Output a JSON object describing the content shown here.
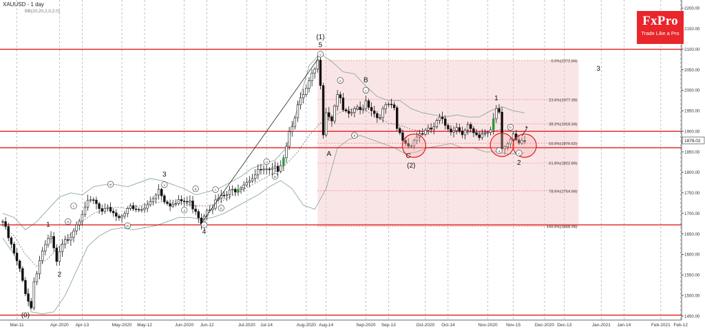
{
  "header": {
    "symbol": "XAUUSD - 1 day",
    "indicator": "BB(20,20,2,0,2.0)"
  },
  "logo": {
    "name": "FxPro",
    "tagline": "Trade Like a Pro"
  },
  "colors": {
    "level": "#e01b1b",
    "zone": "#f3c6c8",
    "bull": "#2a9a3a",
    "bear": "#111111",
    "band": "#8aa89a",
    "text": "#222222"
  },
  "chart_data": {
    "type": "candlestick",
    "symbol": "XAUUSD",
    "timeframe": "1 day",
    "ylim": [
      1440,
      2220
    ],
    "y_ticks": [
      1450,
      1500,
      1550,
      1600,
      1650,
      1700,
      1750,
      1800,
      1850,
      1900,
      1950,
      2000,
      2050,
      2100,
      2150,
      2200
    ],
    "x_ticks": [
      {
        "label": "Mar-11",
        "i": 5
      },
      {
        "label": "Apr-2020",
        "i": 20
      },
      {
        "label": "Apr-13",
        "i": 28
      },
      {
        "label": "May-2020",
        "i": 42
      },
      {
        "label": "May-12",
        "i": 50
      },
      {
        "label": "Jun-2020",
        "i": 64
      },
      {
        "label": "Jun-12",
        "i": 72
      },
      {
        "label": "Jul-2020",
        "i": 86
      },
      {
        "label": "Jul-14",
        "i": 93
      },
      {
        "label": "Aug-2020",
        "i": 107
      },
      {
        "label": "Aug-14",
        "i": 114
      },
      {
        "label": "Sep-2020",
        "i": 128
      },
      {
        "label": "Sep-13",
        "i": 136
      },
      {
        "label": "Oct-2020",
        "i": 149
      },
      {
        "label": "Oct-14",
        "i": 157
      },
      {
        "label": "Nov-2020",
        "i": 171
      },
      {
        "label": "Nov-15",
        "i": 180
      },
      {
        "label": "Dec-2020",
        "i": 191
      },
      {
        "label": "Dec-13",
        "i": 198
      },
      {
        "label": "Jan-2021",
        "i": 211
      },
      {
        "label": "Jan-14",
        "i": 219
      },
      {
        "label": "Feb-2021",
        "i": 232
      },
      {
        "label": "Feb-12",
        "i": 239
      }
    ],
    "close_path": [
      [
        0,
        1680
      ],
      [
        3,
        1620
      ],
      [
        6,
        1560
      ],
      [
        8,
        1510
      ],
      [
        10,
        1470
      ],
      [
        11,
        1535
      ],
      [
        14,
        1610
      ],
      [
        17,
        1640
      ],
      [
        19,
        1580
      ],
      [
        21,
        1620
      ],
      [
        24,
        1650
      ],
      [
        27,
        1690
      ],
      [
        29,
        1720
      ],
      [
        32,
        1730
      ],
      [
        35,
        1700
      ],
      [
        38,
        1710
      ],
      [
        41,
        1690
      ],
      [
        44,
        1715
      ],
      [
        47,
        1705
      ],
      [
        50,
        1710
      ],
      [
        53,
        1740
      ],
      [
        55,
        1760
      ],
      [
        57,
        1735
      ],
      [
        60,
        1720
      ],
      [
        63,
        1730
      ],
      [
        66,
        1725
      ],
      [
        68,
        1710
      ],
      [
        70,
        1680
      ],
      [
        72,
        1715
      ],
      [
        74,
        1720
      ],
      [
        76,
        1735
      ],
      [
        79,
        1745
      ],
      [
        82,
        1760
      ],
      [
        85,
        1775
      ],
      [
        88,
        1790
      ],
      [
        91,
        1805
      ],
      [
        94,
        1800
      ],
      [
        97,
        1810
      ],
      [
        99,
        1840
      ],
      [
        101,
        1900
      ],
      [
        104,
        1960
      ],
      [
        107,
        2000
      ],
      [
        110,
        2050
      ],
      [
        111,
        2068
      ],
      [
        112,
        2020
      ],
      [
        113,
        1900
      ],
      [
        114,
        1950
      ],
      [
        116,
        1930
      ],
      [
        118,
        1995
      ],
      [
        120,
        1950
      ],
      [
        122,
        1935
      ],
      [
        124,
        1955
      ],
      [
        126,
        1950
      ],
      [
        128,
        1975
      ],
      [
        130,
        1955
      ],
      [
        132,
        1935
      ],
      [
        134,
        1950
      ],
      [
        136,
        1965
      ],
      [
        138,
        1950
      ],
      [
        139,
        1905
      ],
      [
        141,
        1880
      ],
      [
        143,
        1865
      ],
      [
        145,
        1880
      ],
      [
        147,
        1895
      ],
      [
        150,
        1900
      ],
      [
        152,
        1910
      ],
      [
        154,
        1930
      ],
      [
        156,
        1915
      ],
      [
        158,
        1905
      ],
      [
        160,
        1910
      ],
      [
        162,
        1900
      ],
      [
        164,
        1915
      ],
      [
        166,
        1890
      ],
      [
        168,
        1880
      ],
      [
        170,
        1895
      ],
      [
        172,
        1905
      ],
      [
        174,
        1960
      ],
      [
        175,
        1950
      ],
      [
        176,
        1865
      ],
      [
        178,
        1870
      ],
      [
        180,
        1885
      ],
      [
        182,
        1865
      ],
      [
        184,
        1875
      ]
    ],
    "bull_candles": [
      83,
      99,
      173
    ],
    "upper_band_path": [
      [
        0,
        1700
      ],
      [
        4,
        1690
      ],
      [
        8,
        1660
      ],
      [
        12,
        1680
      ],
      [
        16,
        1710
      ],
      [
        20,
        1740
      ],
      [
        24,
        1750
      ],
      [
        28,
        1745
      ],
      [
        32,
        1765
      ],
      [
        36,
        1770
      ],
      [
        40,
        1770
      ],
      [
        44,
        1765
      ],
      [
        48,
        1775
      ],
      [
        52,
        1785
      ],
      [
        56,
        1780
      ],
      [
        60,
        1770
      ],
      [
        64,
        1760
      ],
      [
        68,
        1745
      ],
      [
        72,
        1752
      ],
      [
        76,
        1760
      ],
      [
        80,
        1775
      ],
      [
        84,
        1790
      ],
      [
        88,
        1810
      ],
      [
        92,
        1820
      ],
      [
        96,
        1830
      ],
      [
        100,
        1860
      ],
      [
        104,
        1960
      ],
      [
        108,
        2060
      ],
      [
        112,
        2090
      ],
      [
        116,
        2070
      ],
      [
        120,
        2045
      ],
      [
        124,
        2040
      ],
      [
        128,
        2010
      ],
      [
        132,
        1985
      ],
      [
        136,
        1975
      ],
      [
        140,
        1975
      ],
      [
        144,
        1955
      ],
      [
        148,
        1945
      ],
      [
        152,
        1940
      ],
      [
        156,
        1935
      ],
      [
        160,
        1940
      ],
      [
        164,
        1935
      ],
      [
        168,
        1935
      ],
      [
        172,
        1950
      ],
      [
        176,
        1960
      ],
      [
        180,
        1950
      ],
      [
        184,
        1945
      ]
    ],
    "lower_band_path": [
      [
        0,
        1640
      ],
      [
        4,
        1600
      ],
      [
        8,
        1530
      ],
      [
        10,
        1460
      ],
      [
        14,
        1455
      ],
      [
        18,
        1460
      ],
      [
        22,
        1500
      ],
      [
        26,
        1560
      ],
      [
        30,
        1620
      ],
      [
        34,
        1645
      ],
      [
        38,
        1660
      ],
      [
        42,
        1665
      ],
      [
        46,
        1660
      ],
      [
        50,
        1665
      ],
      [
        54,
        1670
      ],
      [
        58,
        1680
      ],
      [
        62,
        1690
      ],
      [
        66,
        1690
      ],
      [
        70,
        1685
      ],
      [
        74,
        1690
      ],
      [
        78,
        1700
      ],
      [
        82,
        1715
      ],
      [
        86,
        1730
      ],
      [
        90,
        1745
      ],
      [
        94,
        1765
      ],
      [
        98,
        1780
      ],
      [
        102,
        1760
      ],
      [
        106,
        1720
      ],
      [
        110,
        1710
      ],
      [
        114,
        1760
      ],
      [
        118,
        1860
      ],
      [
        122,
        1880
      ],
      [
        126,
        1890
      ],
      [
        130,
        1880
      ],
      [
        134,
        1870
      ],
      [
        138,
        1860
      ],
      [
        142,
        1845
      ],
      [
        146,
        1850
      ],
      [
        150,
        1860
      ],
      [
        154,
        1865
      ],
      [
        158,
        1870
      ],
      [
        162,
        1860
      ],
      [
        166,
        1860
      ],
      [
        170,
        1850
      ],
      [
        174,
        1850
      ],
      [
        178,
        1845
      ],
      [
        182,
        1845
      ],
      [
        184,
        1848
      ]
    ],
    "middle_band_path": [
      [
        0,
        1670
      ],
      [
        4,
        1645
      ],
      [
        8,
        1600
      ],
      [
        12,
        1570
      ],
      [
        16,
        1590
      ],
      [
        20,
        1620
      ],
      [
        24,
        1650
      ],
      [
        28,
        1680
      ],
      [
        32,
        1700
      ],
      [
        36,
        1710
      ],
      [
        40,
        1715
      ],
      [
        44,
        1712
      ],
      [
        48,
        1718
      ],
      [
        52,
        1725
      ],
      [
        56,
        1728
      ],
      [
        60,
        1725
      ],
      [
        64,
        1725
      ],
      [
        68,
        1718
      ],
      [
        72,
        1718
      ],
      [
        76,
        1725
      ],
      [
        80,
        1740
      ],
      [
        84,
        1755
      ],
      [
        88,
        1770
      ],
      [
        92,
        1785
      ],
      [
        96,
        1800
      ],
      [
        100,
        1820
      ],
      [
        104,
        1850
      ],
      [
        108,
        1890
      ],
      [
        112,
        1920
      ],
      [
        116,
        1935
      ],
      [
        120,
        1950
      ],
      [
        124,
        1955
      ],
      [
        128,
        1950
      ],
      [
        132,
        1935
      ],
      [
        136,
        1920
      ],
      [
        140,
        1915
      ],
      [
        144,
        1905
      ],
      [
        148,
        1900
      ],
      [
        152,
        1900
      ],
      [
        156,
        1900
      ],
      [
        160,
        1900
      ],
      [
        164,
        1898
      ],
      [
        168,
        1895
      ],
      [
        172,
        1900
      ],
      [
        176,
        1905
      ],
      [
        180,
        1900
      ],
      [
        184,
        1898
      ]
    ],
    "horizontal_levels": [
      2100,
      1900,
      1860,
      1672,
      1452
    ],
    "fib_zone": {
      "i_start": 111,
      "i_end": 203,
      "price_top": 2072.84,
      "price_bottom": 1668.39
    },
    "fib_levels": [
      {
        "price": 2072.84,
        "label": "0.0%(2072.84)"
      },
      {
        "price": 1977.39,
        "label": "23.6%(1977.39)"
      },
      {
        "price": 1918.34,
        "label": "38.2%(1918.34)"
      },
      {
        "price": 1870.62,
        "label": "50.0%(1870.62)"
      },
      {
        "price": 1822.89,
        "label": "61.8%(1822.89)"
      },
      {
        "price": 1754.94,
        "label": "78.6%(1754.94)"
      },
      {
        "price": 1668.39,
        "label": "100.0%(1668.39)"
      }
    ],
    "current_price": "1878.02",
    "trend_line": [
      [
        70,
        1676
      ],
      [
        111,
        2075
      ]
    ],
    "wave_labels": [
      {
        "text": "(0)",
        "i": 8,
        "price": 1447
      },
      {
        "text": "1",
        "i": 16,
        "price": 1668
      },
      {
        "text": "2",
        "i": 20,
        "price": 1546
      },
      {
        "text": "3",
        "i": 57,
        "price": 1790
      },
      {
        "text": "4",
        "i": 71,
        "price": 1650
      },
      {
        "text": "5",
        "i": 112,
        "price": 2105
      },
      {
        "text": "(1)",
        "i": 112,
        "price": 2125
      },
      {
        "text": "A",
        "i": 115,
        "price": 1840
      },
      {
        "text": "B",
        "i": 128,
        "price": 2020
      },
      {
        "text": "C",
        "i": 143,
        "price": 1835
      },
      {
        "text": "(2)",
        "i": 144,
        "price": 1812
      },
      {
        "text": "1",
        "i": 174,
        "price": 1976
      },
      {
        "text": "2",
        "i": 182,
        "price": 1818
      },
      {
        "text": "3",
        "i": 210,
        "price": 2048
      }
    ],
    "sub_wave_labels": [
      {
        "text": "i",
        "i": 25,
        "price": 1718
      },
      {
        "text": "ii",
        "i": 23,
        "price": 1680
      },
      {
        "text": "iii",
        "i": 38,
        "price": 1771
      },
      {
        "text": "iv",
        "i": 44,
        "price": 1670
      },
      {
        "text": "v",
        "i": 57,
        "price": 1770
      },
      {
        "text": "a",
        "i": 64,
        "price": 1708
      },
      {
        "text": "b",
        "i": 68,
        "price": 1760
      },
      {
        "text": "c",
        "i": 71,
        "price": 1672
      },
      {
        "text": "i",
        "i": 75,
        "price": 1758
      },
      {
        "text": "ii",
        "i": 77,
        "price": 1713
      },
      {
        "text": "iii",
        "i": 93,
        "price": 1826
      },
      {
        "text": "iv",
        "i": 96,
        "price": 1790
      },
      {
        "text": "v",
        "i": 112,
        "price": 2088
      },
      {
        "text": "a",
        "i": 119,
        "price": 2024
      },
      {
        "text": "b",
        "i": 124,
        "price": 1890
      },
      {
        "text": "c",
        "i": 128,
        "price": 2000
      },
      {
        "text": "a",
        "i": 175,
        "price": 1853
      },
      {
        "text": "b",
        "i": 179,
        "price": 1910
      },
      {
        "text": "c",
        "i": 182,
        "price": 1847
      }
    ],
    "highlight_circles": [
      {
        "i": 145,
        "price": 1865
      },
      {
        "i": 176,
        "price": 1867
      },
      {
        "i": 184,
        "price": 1865
      }
    ],
    "arrow": {
      "from_i": 183,
      "from_price": 1888,
      "to_i": 185,
      "to_price": 1910
    }
  }
}
